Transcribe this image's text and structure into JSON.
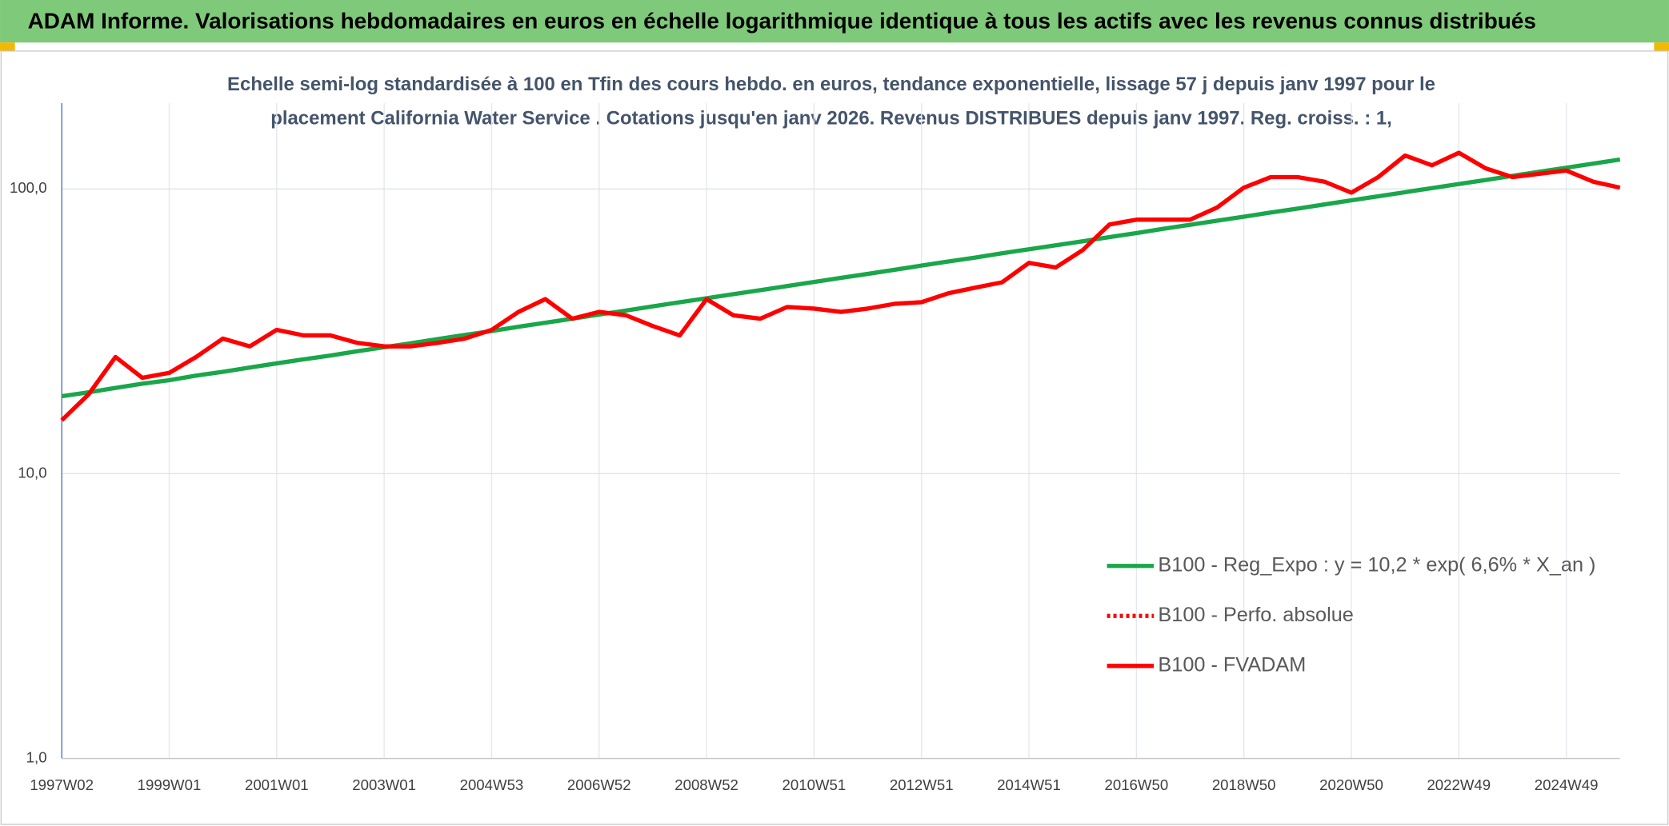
{
  "chart_data": {
    "type": "line",
    "title": "ADAM Informe. Valorisations hebdomadaires en euros en échelle logarithmique identique à tous les actifs avec les revenus connus distribués",
    "subtitle": [
      "Echelle semi-log standardisée à 100 en Tfin des cours hebdo. en euros, tendance exponentielle, lissage 57 j depuis janv 1997 pour le",
      "placement California Water Service . Cotations jusqu'en janv 2026. Revenus DISTRIBUES depuis janv 1997. Reg. croiss. : 1,"
    ],
    "categories": [
      "1997W02",
      null,
      null,
      null,
      "1999W01",
      null,
      null,
      null,
      "2001W01",
      null,
      null,
      null,
      "2003W01",
      null,
      null,
      null,
      "2004W53",
      null,
      null,
      null,
      "2006W52",
      null,
      null,
      null,
      "2008W52",
      null,
      null,
      null,
      "2010W51",
      null,
      null,
      null,
      "2012W51",
      null,
      null,
      null,
      "2014W51",
      null,
      null,
      null,
      "2016W50",
      null,
      null,
      null,
      "2018W50",
      null,
      null,
      null,
      "2020W50",
      null,
      null,
      null,
      "2022W49",
      null,
      null,
      null,
      "2024W49",
      null,
      null
    ],
    "log_scale": true,
    "ylim": [
      1,
      200
    ],
    "yticks": [
      {
        "value": 1,
        "label": "1,0"
      },
      {
        "value": 10,
        "label": "10,0"
      },
      {
        "value": 100,
        "label": "100,0"
      }
    ],
    "grid": true,
    "legend": "right",
    "series": [
      {
        "name": "B100 - Reg_Expo : y = 10,2 * exp( 6,6% *  X_an )",
        "color": "#1aa64a",
        "dash": "solid",
        "values": [
          18.7,
          19.3,
          20.0,
          20.7,
          21.3,
          22.1,
          22.8,
          23.6,
          24.4,
          25.2,
          26.0,
          26.9,
          27.8,
          28.7,
          29.7,
          30.7,
          31.7,
          32.8,
          33.9,
          35.0,
          36.2,
          37.4,
          38.7,
          40.0,
          41.3,
          42.7,
          44.1,
          45.6,
          47.1,
          48.7,
          50.3,
          52.0,
          53.8,
          55.6,
          57.4,
          59.4,
          61.4,
          63.4,
          65.5,
          67.7,
          70.0,
          72.4,
          74.8,
          77.3,
          79.9,
          82.6,
          85.3,
          88.2,
          91.2,
          94.2,
          97.4,
          100.7,
          104.0,
          107.5,
          111.1,
          114.9,
          118.7,
          122.7,
          126.8
        ]
      },
      {
        "name": "B100 - Perfo. absolue",
        "color": "#ff0000",
        "dash": "dotted"
      },
      {
        "name": "B100 - FVADAM",
        "color": "#ff0000",
        "dash": "solid",
        "values": [
          15.4,
          19,
          25.7,
          21.7,
          22.6,
          25.7,
          29.8,
          28,
          32,
          30.6,
          30.6,
          28.8,
          28,
          28,
          28.8,
          29.8,
          32,
          37,
          41,
          35,
          37,
          36,
          33,
          30.6,
          41,
          36,
          35,
          38.5,
          38,
          37,
          38,
          39.5,
          40,
          43,
          45,
          47,
          55,
          53,
          61,
          75,
          78,
          78,
          78,
          86,
          101,
          110,
          110,
          106,
          97,
          110,
          131,
          121,
          134,
          118,
          110,
          113,
          116,
          106,
          101
        ]
      }
    ]
  }
}
